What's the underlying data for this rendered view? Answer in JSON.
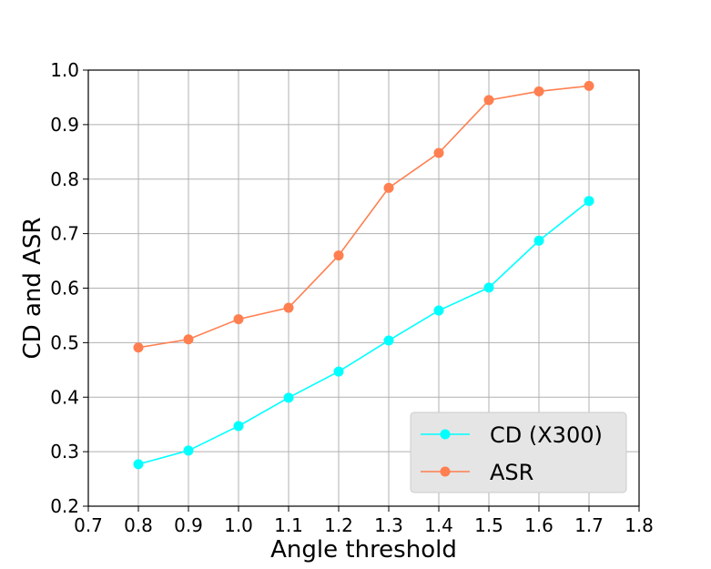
{
  "chart_data": {
    "type": "line",
    "title": "",
    "xlabel": "Angle threshold",
    "ylabel": "CD and ASR",
    "xlim": [
      0.7,
      1.8
    ],
    "ylim": [
      0.2,
      1.0
    ],
    "x_ticks": [
      "0.7",
      "0.8",
      "0.9",
      "1.0",
      "1.1",
      "1.2",
      "1.3",
      "1.4",
      "1.5",
      "1.6",
      "1.7",
      "1.8"
    ],
    "y_ticks": [
      "0.2",
      "0.3",
      "0.4",
      "0.5",
      "0.6",
      "0.7",
      "0.8",
      "0.9",
      "1.0"
    ],
    "grid": true,
    "legend_position": "bottom-right",
    "x": [
      0.8,
      0.9,
      1.0,
      1.1,
      1.2,
      1.3,
      1.4,
      1.5,
      1.6,
      1.7
    ],
    "series": [
      {
        "name": "CD (X300)",
        "color": "#00ffff",
        "values": [
          0.277,
          0.302,
          0.347,
          0.399,
          0.447,
          0.504,
          0.559,
          0.601,
          0.687,
          0.76
        ]
      },
      {
        "name": "ASR",
        "color": "#ff7f50",
        "values": [
          0.491,
          0.506,
          0.543,
          0.564,
          0.66,
          0.784,
          0.848,
          0.945,
          0.961,
          0.971
        ]
      }
    ]
  }
}
